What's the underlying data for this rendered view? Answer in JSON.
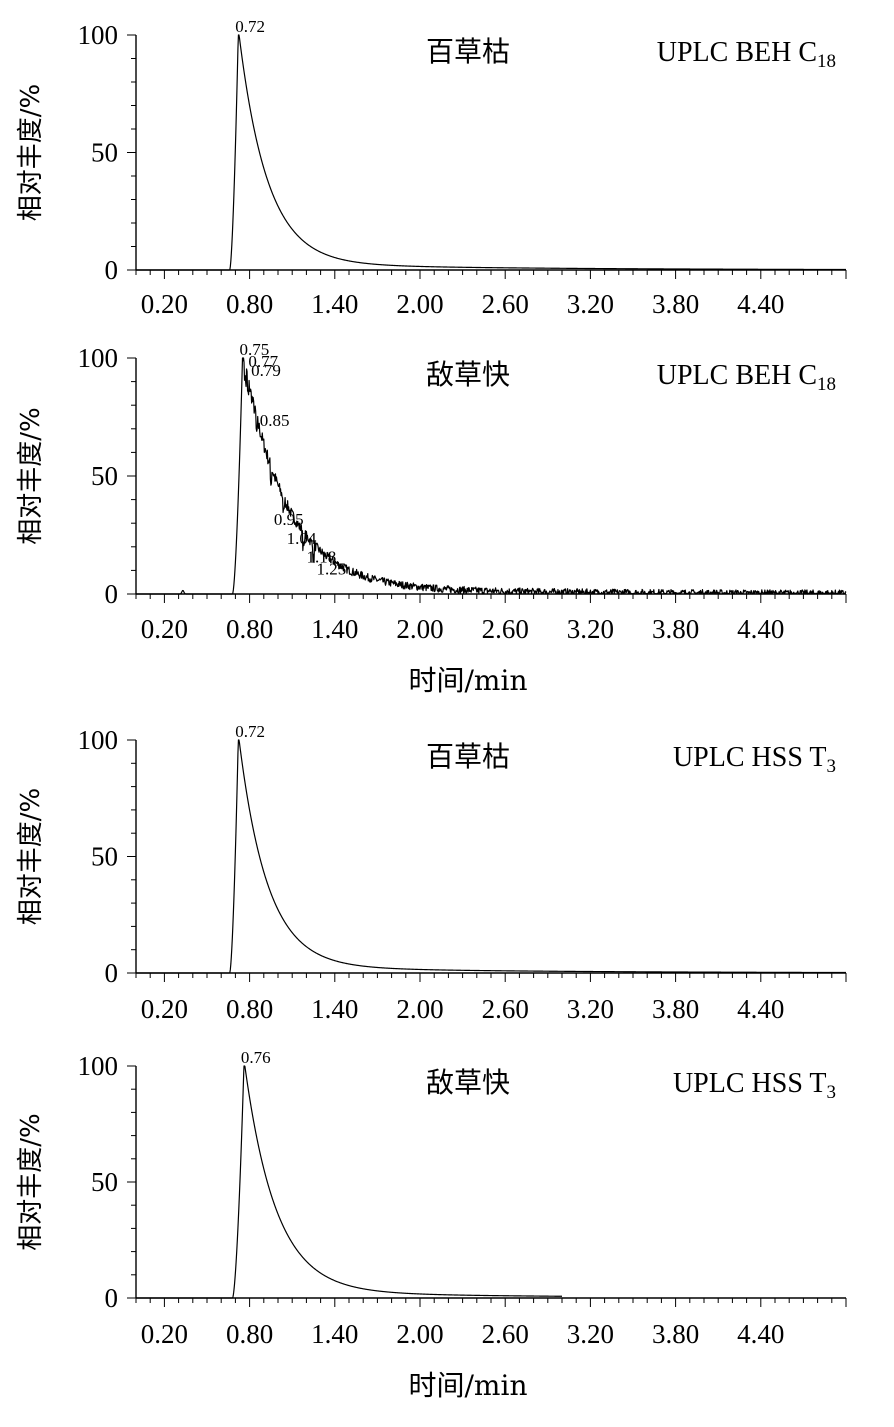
{
  "chart_data": [
    {
      "type": "line",
      "compound": "百草枯",
      "column": "UPLC BEH C",
      "column_subscript": "18",
      "ylabel": "相对丰度/%",
      "xlabel": "",
      "xlim": [
        0.0,
        5.0
      ],
      "ylim": [
        0,
        100
      ],
      "x_ticks": [
        "0.20",
        "0.80",
        "1.40",
        "2.00",
        "2.60",
        "3.20",
        "3.80",
        "4.40"
      ],
      "y_ticks": [
        "0",
        "50",
        "100"
      ],
      "peak": {
        "start": 0.66,
        "apex": 0.72,
        "decay": 0.2,
        "tail": 3.0,
        "end": 5.0
      },
      "peak_labels": [
        {
          "x": 0.72,
          "y": 100,
          "text": "0.72"
        }
      ]
    },
    {
      "type": "line",
      "compound": "敌草快",
      "column": "UPLC BEH C",
      "column_subscript": "18",
      "ylabel": "相对丰度/%",
      "xlabel": "时间/min",
      "xlim": [
        0.0,
        5.0
      ],
      "ylim": [
        0,
        100
      ],
      "x_ticks": [
        "0.20",
        "0.80",
        "1.40",
        "2.00",
        "2.60",
        "3.20",
        "3.80",
        "4.40"
      ],
      "y_ticks": [
        "0",
        "50",
        "100"
      ],
      "peak": {
        "start": 0.68,
        "apex": 0.75,
        "decay": 0.3,
        "tail": 3.0,
        "end": 5.0
      },
      "peak_labels": [
        {
          "x": 0.75,
          "y": 100,
          "text": "0.75"
        },
        {
          "x": 0.77,
          "y": 95,
          "text": "0.77"
        },
        {
          "x": 0.79,
          "y": 91,
          "text": "0.79"
        },
        {
          "x": 0.85,
          "y": 70,
          "text": "0.85"
        },
        {
          "x": 0.95,
          "y": 28,
          "text": "0.95"
        },
        {
          "x": 1.04,
          "y": 20,
          "text": "1.04"
        },
        {
          "x": 1.18,
          "y": 12,
          "text": "1.18"
        },
        {
          "x": 1.25,
          "y": 7,
          "text": "1.25"
        }
      ]
    },
    {
      "type": "line",
      "compound": "百草枯",
      "column": "UPLC HSS T",
      "column_subscript": "3",
      "ylabel": "相对丰度/%",
      "xlabel": "",
      "xlim": [
        0.0,
        5.0
      ],
      "ylim": [
        0,
        100
      ],
      "x_ticks": [
        "0.20",
        "0.80",
        "1.40",
        "2.00",
        "2.60",
        "3.20",
        "3.80",
        "4.40"
      ],
      "y_ticks": [
        "0",
        "50",
        "100"
      ],
      "peak": {
        "start": 0.66,
        "apex": 0.72,
        "decay": 0.2,
        "tail": 3.0,
        "end": 5.0
      },
      "peak_labels": [
        {
          "x": 0.72,
          "y": 100,
          "text": "0.72"
        }
      ]
    },
    {
      "type": "line",
      "compound": "敌草快",
      "column": "UPLC HSS T",
      "column_subscript": "3",
      "ylabel": "相对丰度/%",
      "xlabel": "时间/min",
      "xlim": [
        0.0,
        5.0
      ],
      "ylim": [
        0,
        100
      ],
      "x_ticks": [
        "0.20",
        "0.80",
        "1.40",
        "2.00",
        "2.60",
        "3.20",
        "3.80",
        "4.40"
      ],
      "y_ticks": [
        "0",
        "50",
        "100"
      ],
      "peak": {
        "start": 0.68,
        "apex": 0.76,
        "decay": 0.22,
        "tail": 3.0,
        "end": 3.0
      },
      "peak_labels": [
        {
          "x": 0.76,
          "y": 100,
          "text": "0.76"
        }
      ]
    }
  ]
}
